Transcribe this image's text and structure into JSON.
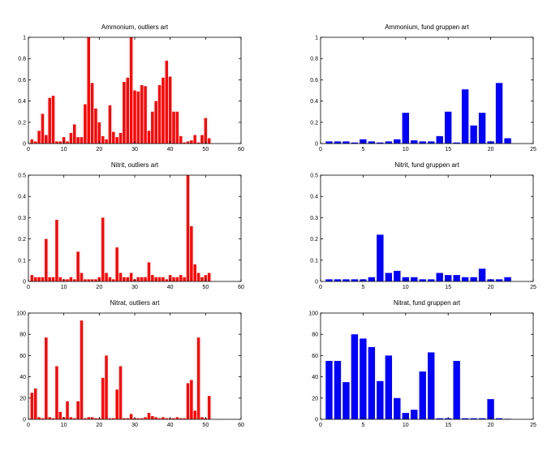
{
  "chart_data": [
    {
      "type": "bar",
      "title": "Ammonium, outliers art",
      "color": "#ff0000",
      "xlim": [
        0,
        60
      ],
      "ylim": [
        0,
        1
      ],
      "xticks": [
        "0",
        "10",
        "20",
        "30",
        "40",
        "50",
        "60"
      ],
      "yticks": [
        "0",
        "0.2",
        "0.4",
        "0.6",
        "0.8",
        "1"
      ],
      "x": [
        1,
        2,
        3,
        4,
        5,
        6,
        7,
        8,
        9,
        10,
        11,
        12,
        13,
        14,
        15,
        16,
        17,
        18,
        19,
        20,
        21,
        22,
        23,
        24,
        25,
        26,
        27,
        28,
        29,
        30,
        31,
        32,
        33,
        34,
        35,
        36,
        37,
        38,
        39,
        40,
        41,
        42,
        43,
        44,
        45,
        46,
        47,
        48,
        49,
        50,
        51
      ],
      "values": [
        0.04,
        0.02,
        0.12,
        0.28,
        0.08,
        0.43,
        0.45,
        0.02,
        0.02,
        0.06,
        0.02,
        0.1,
        0.18,
        0.06,
        0.06,
        0.37,
        1.0,
        0.57,
        0.33,
        0.2,
        0.07,
        0.04,
        0.36,
        0.11,
        0.06,
        0.1,
        0.58,
        0.62,
        1.0,
        0.5,
        0.49,
        0.55,
        0.54,
        0.12,
        0.3,
        0.4,
        0.55,
        0.62,
        0.78,
        0.63,
        0.3,
        0.3,
        0.07,
        0.01,
        0.02,
        0.03,
        0.08,
        0.01,
        0.08,
        0.24,
        0.05
      ]
    },
    {
      "type": "bar",
      "title": "Ammonium, fund gruppen art",
      "color": "#0000ff",
      "xlim": [
        0,
        25
      ],
      "ylim": [
        0,
        1
      ],
      "xticks": [
        "0",
        "5",
        "10",
        "15",
        "20",
        "25"
      ],
      "yticks": [
        "0",
        "0.2",
        "0.4",
        "0.6",
        "0.8",
        "1"
      ],
      "x": [
        1,
        2,
        3,
        4,
        5,
        6,
        7,
        8,
        9,
        10,
        11,
        12,
        13,
        14,
        15,
        16,
        17,
        18,
        19,
        20,
        21,
        22
      ],
      "values": [
        0.02,
        0.02,
        0.02,
        0.01,
        0.04,
        0.02,
        0.01,
        0.02,
        0.04,
        0.29,
        0.03,
        0.02,
        0.02,
        0.07,
        0.3,
        0.01,
        0.51,
        0.17,
        0.29,
        0.02,
        0.57,
        0.05
      ]
    },
    {
      "type": "bar",
      "title": "Nitrit, outliers art",
      "color": "#ff0000",
      "xlim": [
        0,
        60
      ],
      "ylim": [
        0,
        0.5
      ],
      "xticks": [
        "0",
        "10",
        "20",
        "30",
        "40",
        "50",
        "60"
      ],
      "yticks": [
        "0",
        "0.1",
        "0.2",
        "0.3",
        "0.4",
        "0.5"
      ],
      "x": [
        1,
        2,
        3,
        4,
        5,
        6,
        7,
        8,
        9,
        10,
        11,
        12,
        13,
        14,
        15,
        16,
        17,
        18,
        19,
        20,
        21,
        22,
        23,
        24,
        25,
        26,
        27,
        28,
        29,
        30,
        31,
        32,
        33,
        34,
        35,
        36,
        37,
        38,
        39,
        40,
        41,
        42,
        43,
        44,
        45,
        46,
        47,
        48,
        49,
        50,
        51
      ],
      "values": [
        0.03,
        0.02,
        0.02,
        0.02,
        0.2,
        0.02,
        0.02,
        0.29,
        0.02,
        0.01,
        0.01,
        0.02,
        0.01,
        0.14,
        0.04,
        0.01,
        0.01,
        0.01,
        0.01,
        0.02,
        0.3,
        0.04,
        0.02,
        0.01,
        0.16,
        0.04,
        0.02,
        0.02,
        0.04,
        0.01,
        0.02,
        0.02,
        0.02,
        0.09,
        0.03,
        0.02,
        0.02,
        0.02,
        0.01,
        0.03,
        0.02,
        0.02,
        0.03,
        0.02,
        0.5,
        0.26,
        0.08,
        0.04,
        0.02,
        0.03,
        0.04
      ]
    },
    {
      "type": "bar",
      "title": "Nitrit, fund gruppen art",
      "color": "#0000ff",
      "xlim": [
        0,
        25
      ],
      "ylim": [
        0,
        0.5
      ],
      "xticks": [
        "0",
        "5",
        "10",
        "15",
        "20",
        "25"
      ],
      "yticks": [
        "0",
        "0.1",
        "0.2",
        "0.3",
        "0.4",
        "0.5"
      ],
      "x": [
        1,
        2,
        3,
        4,
        5,
        6,
        7,
        8,
        9,
        10,
        11,
        12,
        13,
        14,
        15,
        16,
        17,
        18,
        19,
        20,
        21,
        22
      ],
      "values": [
        0.01,
        0.01,
        0.01,
        0.01,
        0.01,
        0.02,
        0.22,
        0.04,
        0.05,
        0.02,
        0.02,
        0.01,
        0.01,
        0.04,
        0.03,
        0.03,
        0.02,
        0.02,
        0.06,
        0.01,
        0.01,
        0.02
      ]
    },
    {
      "type": "bar",
      "title": "Nitrat, outliers art",
      "color": "#ff0000",
      "xlim": [
        0,
        60
      ],
      "ylim": [
        0,
        100
      ],
      "xticks": [
        "0",
        "10",
        "20",
        "30",
        "40",
        "50",
        "60"
      ],
      "yticks": [
        "0",
        "20",
        "40",
        "60",
        "80",
        "100"
      ],
      "x": [
        1,
        2,
        3,
        4,
        5,
        6,
        7,
        8,
        9,
        10,
        11,
        12,
        13,
        14,
        15,
        16,
        17,
        18,
        19,
        20,
        21,
        22,
        23,
        24,
        25,
        26,
        27,
        28,
        29,
        30,
        31,
        32,
        33,
        34,
        35,
        36,
        37,
        38,
        39,
        40,
        41,
        42,
        43,
        44,
        45,
        46,
        47,
        48,
        49,
        50,
        51
      ],
      "values": [
        25,
        29,
        2,
        1,
        77,
        2,
        1,
        50,
        7,
        2,
        17,
        2,
        1,
        17,
        93,
        1,
        2,
        2,
        1,
        1,
        39,
        60,
        1,
        1,
        28,
        50,
        1,
        1,
        5,
        1,
        1,
        1,
        2,
        6,
        3,
        2,
        1,
        2,
        1,
        1,
        1,
        2,
        1,
        1,
        34,
        37,
        8,
        77,
        2,
        1,
        22
      ]
    },
    {
      "type": "bar",
      "title": "Nitrat, fund gruppen art",
      "color": "#0000ff",
      "xlim": [
        0,
        25
      ],
      "ylim": [
        0,
        100
      ],
      "xticks": [
        "0",
        "5",
        "10",
        "15",
        "20",
        "25"
      ],
      "yticks": [
        "0",
        "20",
        "40",
        "60",
        "80",
        "100"
      ],
      "x": [
        1,
        2,
        3,
        4,
        5,
        6,
        7,
        8,
        9,
        10,
        11,
        12,
        13,
        14,
        15,
        16,
        17,
        18,
        19,
        20,
        21,
        22
      ],
      "values": [
        55,
        55,
        35,
        80,
        76,
        68,
        36,
        60,
        20,
        6,
        9,
        45,
        63,
        1,
        1,
        55,
        1,
        1,
        1,
        19,
        1,
        0.5
      ]
    }
  ]
}
